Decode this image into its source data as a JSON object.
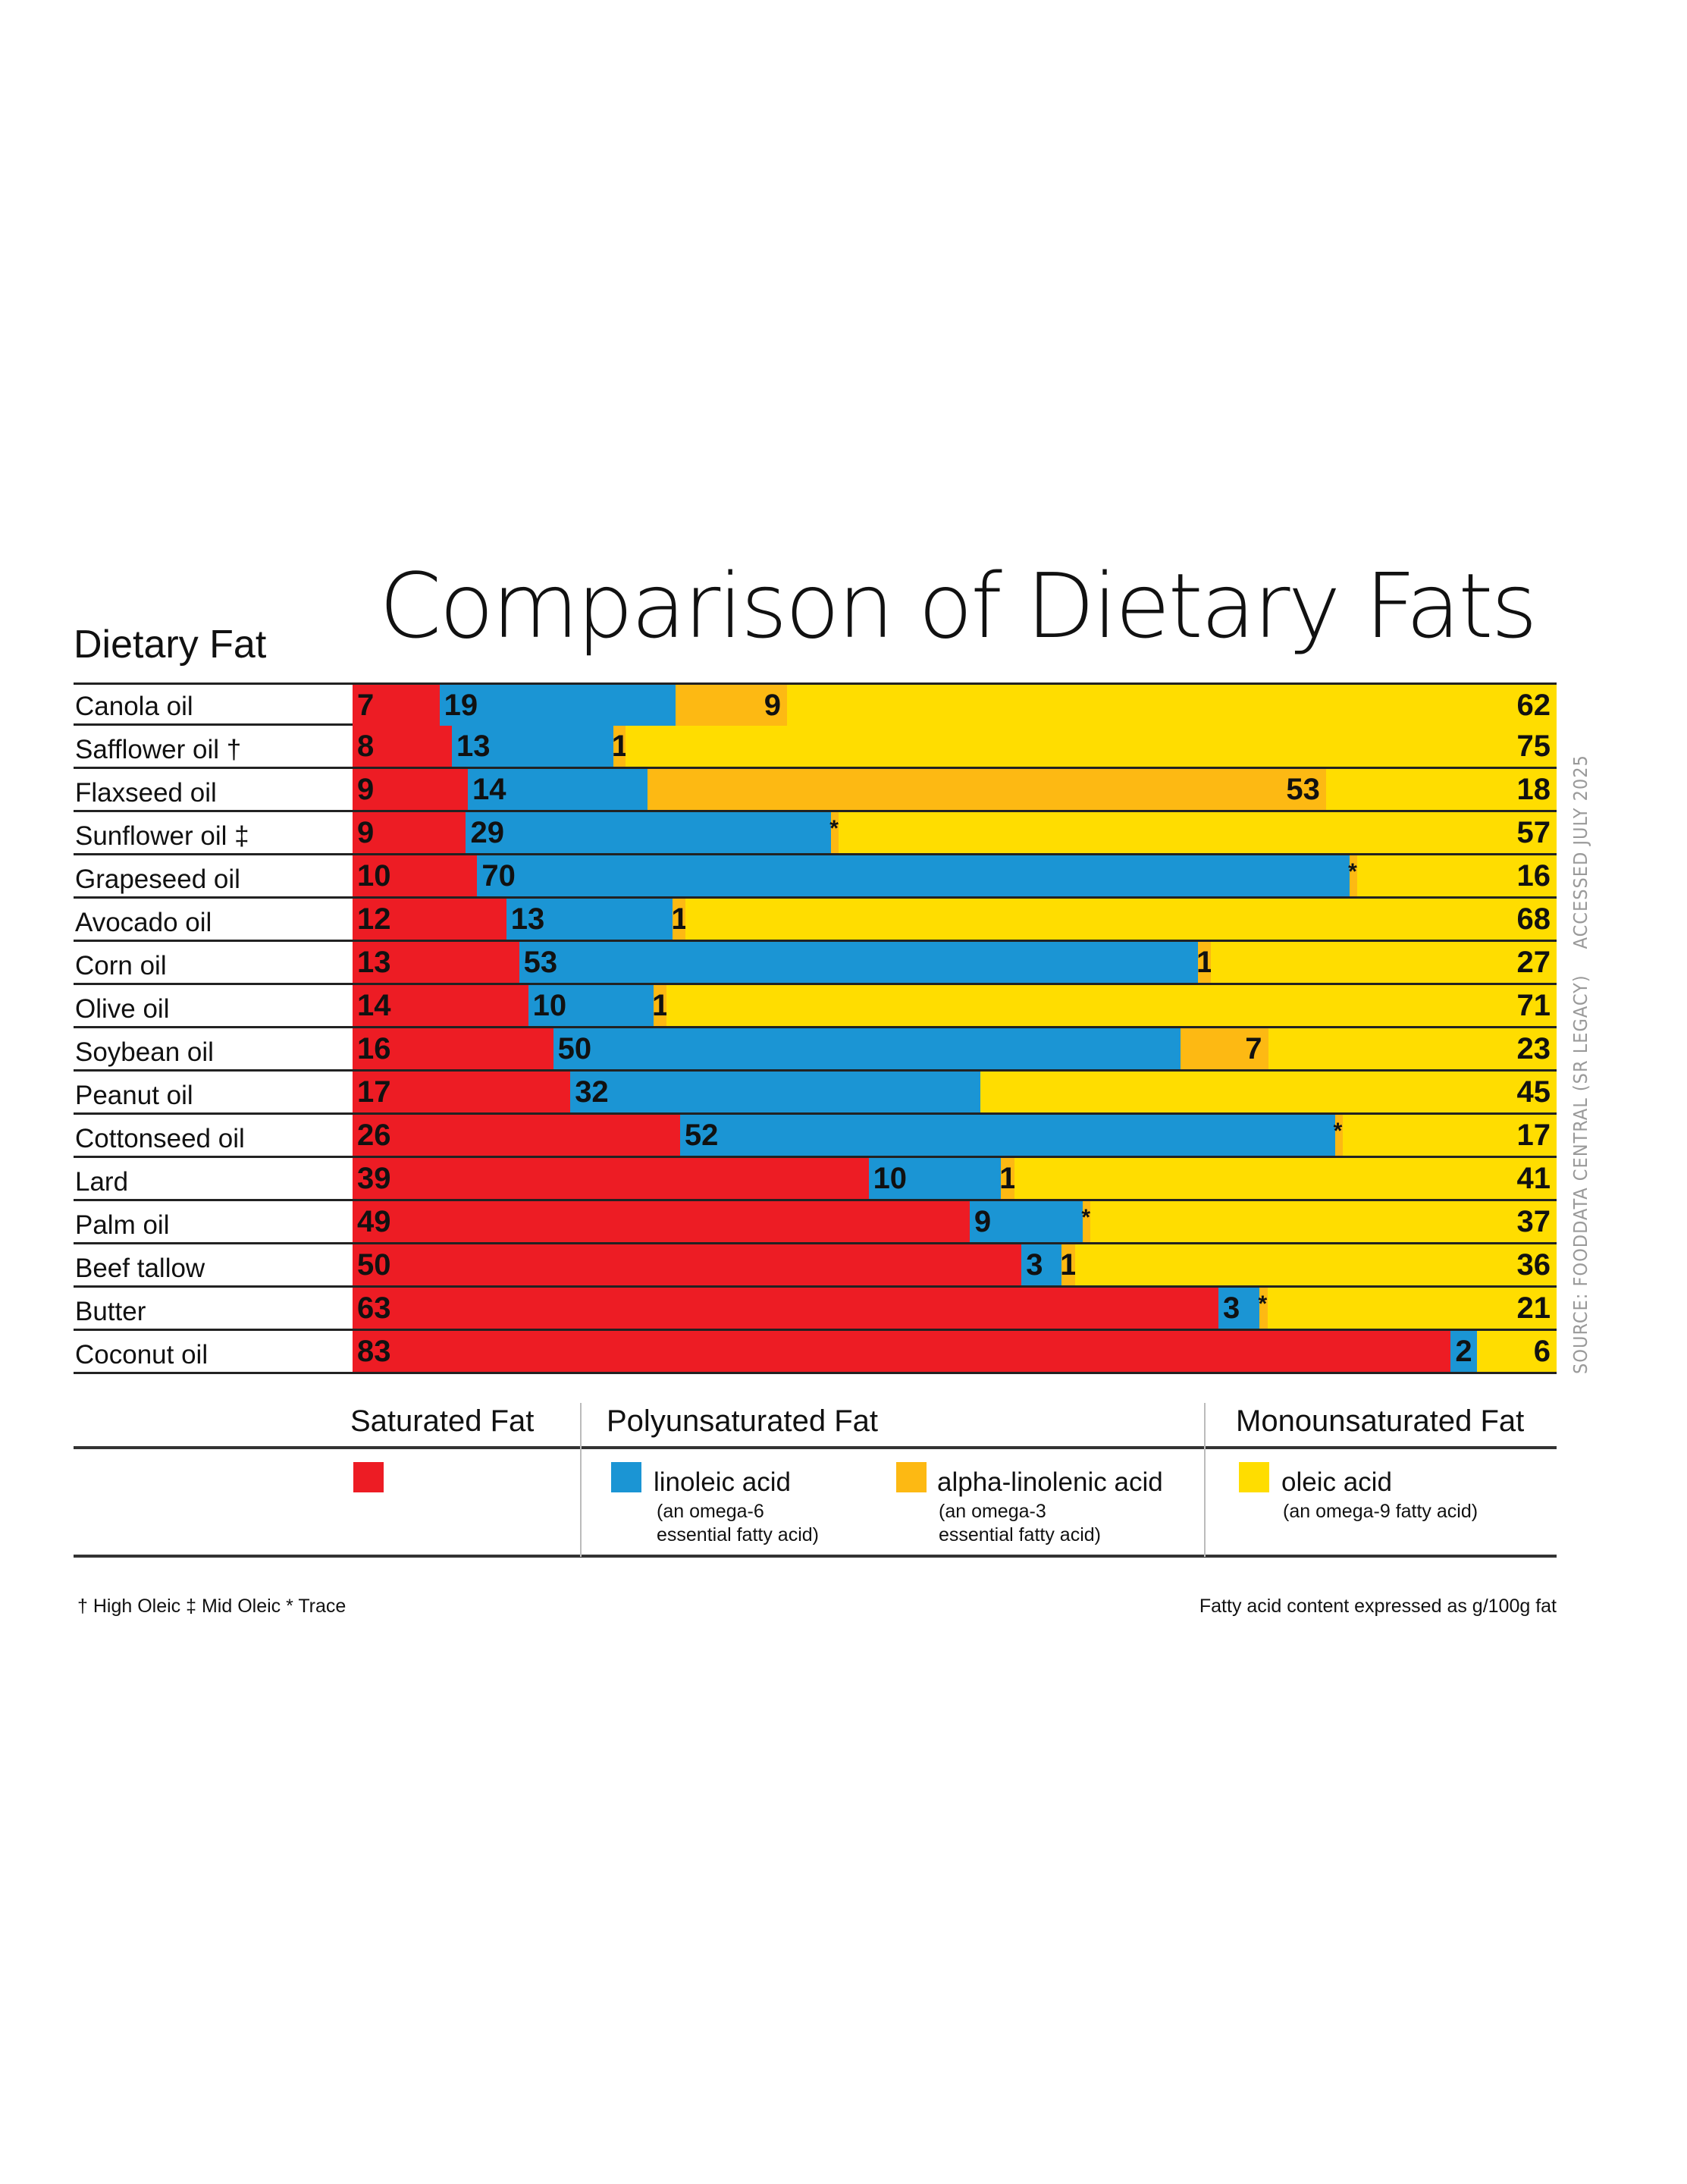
{
  "chart_data": {
    "type": "bar",
    "orientation": "horizontal",
    "stacked": true,
    "normalized_per_row": true,
    "title": "Comparison of Dietary Fats",
    "ylabel": "Dietary Fat",
    "units_note": "Fatty acid content expressed as g/100g fat",
    "source": [
      "SOURCE: FOODDATA CENTRAL (SR LEGACY)",
      "ACCESSED JULY 2025"
    ],
    "categories": [
      "Canola oil",
      "Safflower oil †",
      "Flaxseed oil",
      "Sunflower oil ‡",
      "Grapeseed oil",
      "Avocado oil",
      "Corn oil",
      "Olive oil",
      "Soybean oil",
      "Peanut oil",
      "Cottonseed oil",
      "Lard",
      "Palm oil",
      "Beef tallow",
      "Butter",
      "Coconut oil"
    ],
    "series": [
      {
        "name": "Saturated Fat",
        "color": "#ED1C24",
        "values": [
          7,
          8,
          9,
          9,
          10,
          12,
          13,
          14,
          16,
          17,
          26,
          39,
          49,
          50,
          63,
          83
        ]
      },
      {
        "name": "linoleic acid",
        "color": "#1B95D4",
        "values": [
          19,
          13,
          14,
          29,
          70,
          13,
          53,
          10,
          50,
          32,
          52,
          10,
          9,
          3,
          3,
          2
        ]
      },
      {
        "name": "alpha-linolenic acid",
        "color": "#FDB913",
        "values": [
          9,
          1,
          53,
          "*",
          "*",
          1,
          1,
          1,
          7,
          null,
          "*",
          1,
          "*",
          1,
          "*",
          null
        ]
      },
      {
        "name": "oleic acid",
        "color": "#FFDD00",
        "values": [
          62,
          75,
          18,
          57,
          16,
          68,
          27,
          71,
          23,
          45,
          17,
          41,
          37,
          36,
          21,
          6
        ]
      }
    ],
    "legend": {
      "groups": [
        {
          "label": "Saturated Fat",
          "items": [
            {
              "color": "#ED1C24",
              "name": "",
              "note": ""
            }
          ]
        },
        {
          "label": "Polyunsaturated Fat",
          "items": [
            {
              "color": "#1B95D4",
              "name": "linoleic acid",
              "note": "(an omega-6\nessential fatty acid)"
            },
            {
              "color": "#FDB913",
              "name": "alpha-linolenic acid",
              "note": "(an omega-3\nessential fatty acid)"
            }
          ]
        },
        {
          "label": "Monounsaturated Fat",
          "items": [
            {
              "color": "#FFDD00",
              "name": "oleic acid",
              "note": "(an omega-9 fatty acid)"
            }
          ]
        }
      ],
      "placement": "bottom"
    },
    "footnotes": {
      "symbols": "† High Oleic  ‡ Mid Oleic  * Trace",
      "units": "Fatty acid content expressed as g/100g fat"
    }
  }
}
